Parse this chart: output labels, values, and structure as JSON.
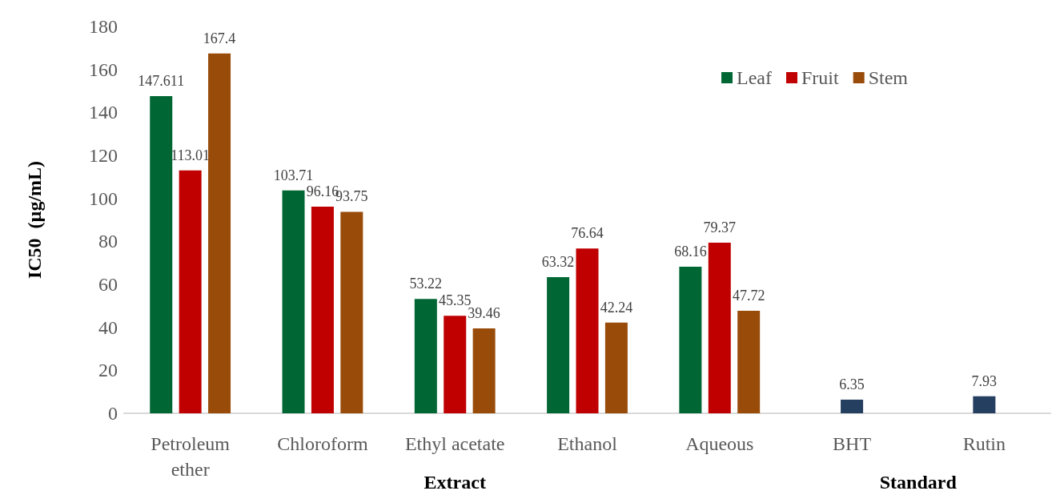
{
  "chart_data": {
    "type": "bar",
    "ylabel": "IC50  (µg/mL)",
    "categories": [
      "Petroleum\nether",
      "Chloroform",
      "Ethyl acetate",
      "Ethanol",
      "Aqueous",
      "BHT",
      "Rutin"
    ],
    "series": [
      {
        "name": "Leaf",
        "color": "#006633",
        "values": [
          147.611,
          103.71,
          53.22,
          63.32,
          68.16,
          null,
          null
        ]
      },
      {
        "name": "Fruit",
        "color": "#c00000",
        "colors": [
          "#c00000",
          "#c00000",
          "#c00000",
          "#c00000",
          "#c00000",
          "#243f60",
          "#243f60"
        ],
        "values": [
          113.01,
          96.16,
          45.35,
          76.64,
          79.37,
          6.35,
          7.93
        ]
      },
      {
        "name": "Stem",
        "color": "#994c0a",
        "values": [
          167.4,
          93.75,
          39.46,
          42.24,
          47.72,
          null,
          null
        ]
      }
    ],
    "ylim": [
      0,
      180
    ],
    "yticks": [
      0,
      20,
      40,
      60,
      80,
      100,
      120,
      140,
      160,
      180
    ],
    "data_labels": true,
    "grid": false,
    "legend": "top right",
    "annotations": [
      "Extract",
      "Standard"
    ]
  }
}
